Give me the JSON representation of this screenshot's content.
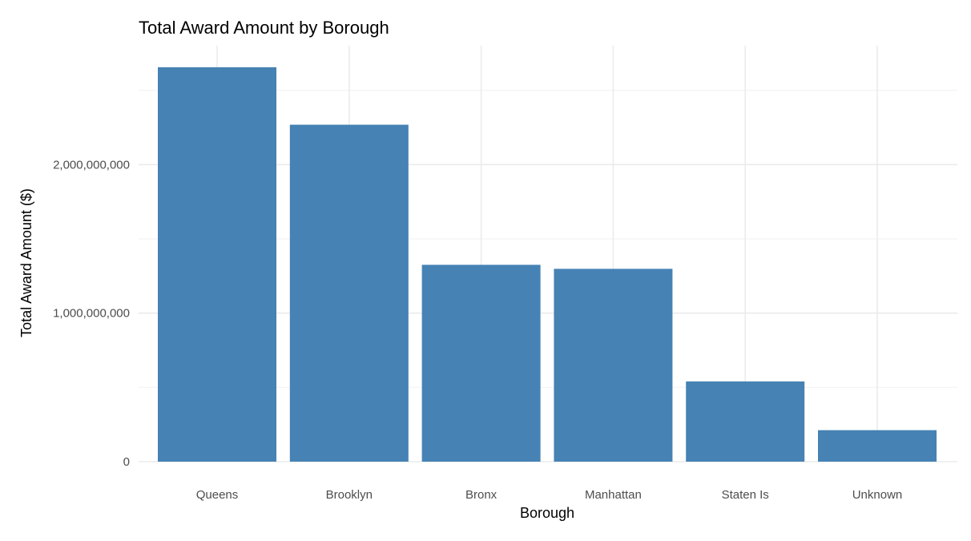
{
  "chart_data": {
    "type": "bar",
    "title": "Total Award Amount by Borough",
    "xlabel": "Borough",
    "ylabel": "Total Award Amount ($)",
    "categories": [
      "Queens",
      "Brooklyn",
      "Bronx",
      "Manhattan",
      "Staten Is",
      "Unknown"
    ],
    "values": [
      2655000000,
      2268000000,
      1325000000,
      1298000000,
      540000000,
      212000000
    ],
    "ylim": [
      0,
      2800000000
    ],
    "yticks": [
      0,
      1000000000,
      2000000000
    ],
    "ytick_labels": [
      "0",
      "1,000,000,000",
      "2,000,000,000"
    ],
    "grid": true,
    "legend": "none",
    "bar_color": "#4682b4"
  }
}
